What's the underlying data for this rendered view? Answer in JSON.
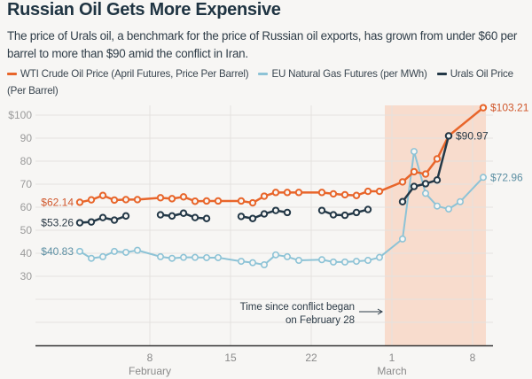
{
  "title": "Russian Oil Gets More Expensive",
  "subtitle": "The price of Urals oil, a benchmark for the price of Russian oil exports, has grown from under $60 per barrel to more than $90 amid the conflict in Iran.",
  "chart_data": {
    "type": "line",
    "ylim": [
      0,
      100
    ],
    "yticks": [
      {
        "value": 100,
        "label": "$100"
      },
      {
        "value": 90,
        "label": "90"
      },
      {
        "value": 80,
        "label": "80"
      },
      {
        "value": 70,
        "label": "70"
      },
      {
        "value": 60,
        "label": "60"
      },
      {
        "value": 50,
        "label": "50"
      },
      {
        "value": 40,
        "label": "40"
      },
      {
        "value": 30,
        "label": "30"
      }
    ],
    "xticks": [
      {
        "date": "Feb 8",
        "label": "8"
      },
      {
        "date": "Feb 15",
        "label": "15"
      },
      {
        "date": "Feb 22",
        "label": "22"
      },
      {
        "date": "Mar 1",
        "label": "1"
      },
      {
        "date": "Mar 8",
        "label": "8"
      }
    ],
    "month_labels": [
      {
        "date": "Feb 8",
        "label": "February"
      },
      {
        "date": "Mar 1",
        "label": "March"
      }
    ],
    "grid": true,
    "legend_position": "top",
    "shaded_region": {
      "from": "Feb 28",
      "to": "Mar 9",
      "color": "#f8dccd"
    },
    "annotation": {
      "lines": [
        "Time since conflict began",
        "on February 28"
      ]
    },
    "series": [
      {
        "name": "WTI Crude Oil Price (April Futures, Price Per Barrel)",
        "color": "#e8652a",
        "start_label": "$62.14",
        "end_label": "$103.21",
        "points": [
          [
            "Feb 2",
            62.14
          ],
          [
            "Feb 3",
            63.2
          ],
          [
            "Feb 4",
            65.1
          ],
          [
            "Feb 5",
            63.1
          ],
          [
            "Feb 6",
            63.3
          ],
          [
            "Feb 7",
            63.3
          ],
          [
            "Feb 9",
            64.1
          ],
          [
            "Feb 10",
            63.7
          ],
          [
            "Feb 11",
            64.5
          ],
          [
            "Feb 12",
            62.6
          ],
          [
            "Feb 13",
            62.7
          ],
          [
            "Feb 14",
            62.7
          ],
          [
            "Feb 16",
            62.7
          ],
          [
            "Feb 17",
            61.9
          ],
          [
            "Feb 18",
            64.8
          ],
          [
            "Feb 19",
            66.4
          ],
          [
            "Feb 20",
            66.4
          ],
          [
            "Feb 21",
            66.4
          ],
          [
            "Feb 23",
            66.4
          ],
          [
            "Feb 24",
            65.8
          ],
          [
            "Feb 25",
            65.4
          ],
          [
            "Feb 26",
            65.1
          ],
          [
            "Feb 27",
            66.9
          ],
          [
            "Feb 28",
            66.9
          ],
          [
            "Mar 2",
            71.0
          ],
          [
            "Mar 3",
            75.4
          ],
          [
            "Mar 4",
            74.4
          ],
          [
            "Mar 5",
            81.0
          ],
          [
            "Mar 6",
            91.0
          ],
          [
            "Mar 9",
            103.21
          ]
        ]
      },
      {
        "name": "EU Natural Gas Futures (per MWh)",
        "color": "#8dc3d6",
        "start_label": "$40.83",
        "end_label": "$72.96",
        "points": [
          [
            "Feb 2",
            40.83
          ],
          [
            "Feb 3",
            37.8
          ],
          [
            "Feb 4",
            38.5
          ],
          [
            "Feb 5",
            40.8
          ],
          [
            "Feb 6",
            40.4
          ],
          [
            "Feb 7",
            41.3
          ],
          [
            "Feb 9",
            38.5
          ],
          [
            "Feb 10",
            37.8
          ],
          [
            "Feb 11",
            38.2
          ],
          [
            "Feb 12",
            38.2
          ],
          [
            "Feb 13",
            38.1
          ],
          [
            "Feb 14",
            38.1
          ],
          [
            "Feb 16",
            36.5
          ],
          [
            "Feb 17",
            35.9
          ],
          [
            "Feb 18",
            35.0
          ],
          [
            "Feb 19",
            39.3
          ],
          [
            "Feb 20",
            38.5
          ],
          [
            "Feb 21",
            36.9
          ],
          [
            "Feb 23",
            37.2
          ],
          [
            "Feb 24",
            36.2
          ],
          [
            "Feb 25",
            36.2
          ],
          [
            "Feb 26",
            36.5
          ],
          [
            "Feb 27",
            36.9
          ],
          [
            "Feb 28",
            38.2
          ],
          [
            "Mar 2",
            46.2
          ],
          [
            "Mar 3",
            84.2
          ],
          [
            "Mar 4",
            66.0
          ],
          [
            "Mar 5",
            60.5
          ],
          [
            "Mar 6",
            59.2
          ],
          [
            "Mar 7",
            62.4
          ],
          [
            "Mar 9",
            72.96
          ]
        ]
      },
      {
        "name": "Urals Oil Price (Per Barrel)",
        "color": "#233847",
        "start_label": "$53.26",
        "end_label": "$90.97",
        "points": [
          [
            "Feb 2",
            53.26
          ],
          [
            "Feb 3",
            53.6
          ],
          [
            "Feb 4",
            55.5
          ],
          [
            "Feb 5",
            54.4
          ],
          [
            "Feb 6",
            56.2
          ],
          [
            "Feb 7",
            null
          ],
          [
            "Feb 9",
            56.7
          ],
          [
            "Feb 10",
            56.2
          ],
          [
            "Feb 11",
            57.4
          ],
          [
            "Feb 12",
            55.5
          ],
          [
            "Feb 13",
            55.1
          ],
          [
            "Feb 14",
            null
          ],
          [
            "Feb 16",
            56.0
          ],
          [
            "Feb 17",
            55.1
          ],
          [
            "Feb 18",
            57.1
          ],
          [
            "Feb 19",
            58.6
          ],
          [
            "Feb 20",
            57.7
          ],
          [
            "Feb 21",
            null
          ],
          [
            "Feb 23",
            58.6
          ],
          [
            "Feb 24",
            56.7
          ],
          [
            "Feb 25",
            56.5
          ],
          [
            "Feb 26",
            57.7
          ],
          [
            "Feb 27",
            59.0
          ],
          [
            "Feb 28",
            null
          ],
          [
            "Mar 2",
            62.4
          ],
          [
            "Mar 3",
            69.0
          ],
          [
            "Mar 4",
            70.2
          ],
          [
            "Mar 5",
            71.8
          ],
          [
            "Mar 6",
            90.97
          ]
        ]
      }
    ]
  }
}
